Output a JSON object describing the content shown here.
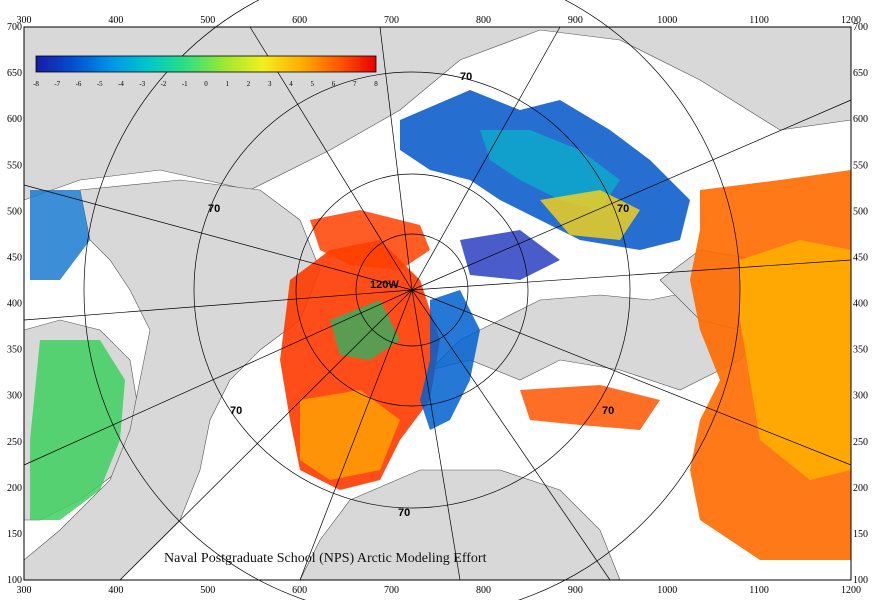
{
  "map": {
    "credit": "Naval Postgraduate School (NPS) Arctic Modeling Effort",
    "x_axis_ticks": [
      "300",
      "400",
      "500",
      "600",
      "700",
      "800",
      "900",
      "1000",
      "1100",
      "1200"
    ],
    "y_axis_ticks": [
      "700",
      "650",
      "600",
      "550",
      "500",
      "450",
      "400",
      "350",
      "300",
      "250",
      "200",
      "150",
      "100"
    ],
    "colorbar": {
      "ticks": [
        "-8",
        "-7",
        "-6",
        "-5",
        "-4",
        "-3",
        "-2",
        "-1",
        "0",
        "1",
        "2",
        "3",
        "4",
        "5",
        "6",
        "7",
        "8"
      ],
      "colors": [
        "#1a1aa6",
        "#0050d0",
        "#0095e8",
        "#00c8c8",
        "#30e080",
        "#a0e830",
        "#f0f020",
        "#ffb000",
        "#ff5a00",
        "#e80000"
      ]
    },
    "contour_labels": [
      "70",
      "70",
      "70",
      "70",
      "70",
      "70",
      "120W"
    ],
    "colors": {
      "land": "#d8d8d8",
      "ocean_blank": "#ffffff",
      "grid": "#000000"
    }
  }
}
